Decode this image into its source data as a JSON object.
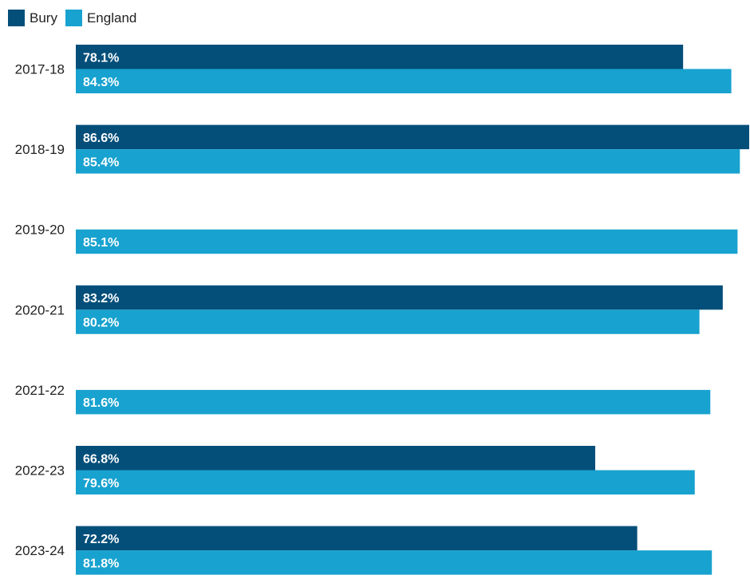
{
  "chart_data": {
    "type": "bar",
    "orientation": "horizontal",
    "categories": [
      "2017-18",
      "2018-19",
      "2019-20",
      "2020-21",
      "2021-22",
      "2022-23",
      "2023-24"
    ],
    "series": [
      {
        "name": "Bury",
        "color": "#044F7A",
        "values": [
          78.1,
          86.6,
          null,
          83.2,
          null,
          66.8,
          72.2
        ],
        "labels": [
          "78.1%",
          "86.6%",
          "",
          "83.2%",
          "",
          "66.8%",
          "72.2%"
        ]
      },
      {
        "name": "England",
        "color": "#18A2CF",
        "values": [
          84.3,
          85.4,
          85.1,
          80.2,
          81.6,
          79.6,
          81.8
        ],
        "labels": [
          "84.3%",
          "85.4%",
          "85.1%",
          "80.2%",
          "81.6%",
          "79.6%",
          "81.8%"
        ]
      }
    ],
    "title": "",
    "xlabel": "",
    "ylabel": "",
    "xlim": [
      0,
      86.6
    ],
    "grid": false,
    "legend_position": "top-left"
  }
}
